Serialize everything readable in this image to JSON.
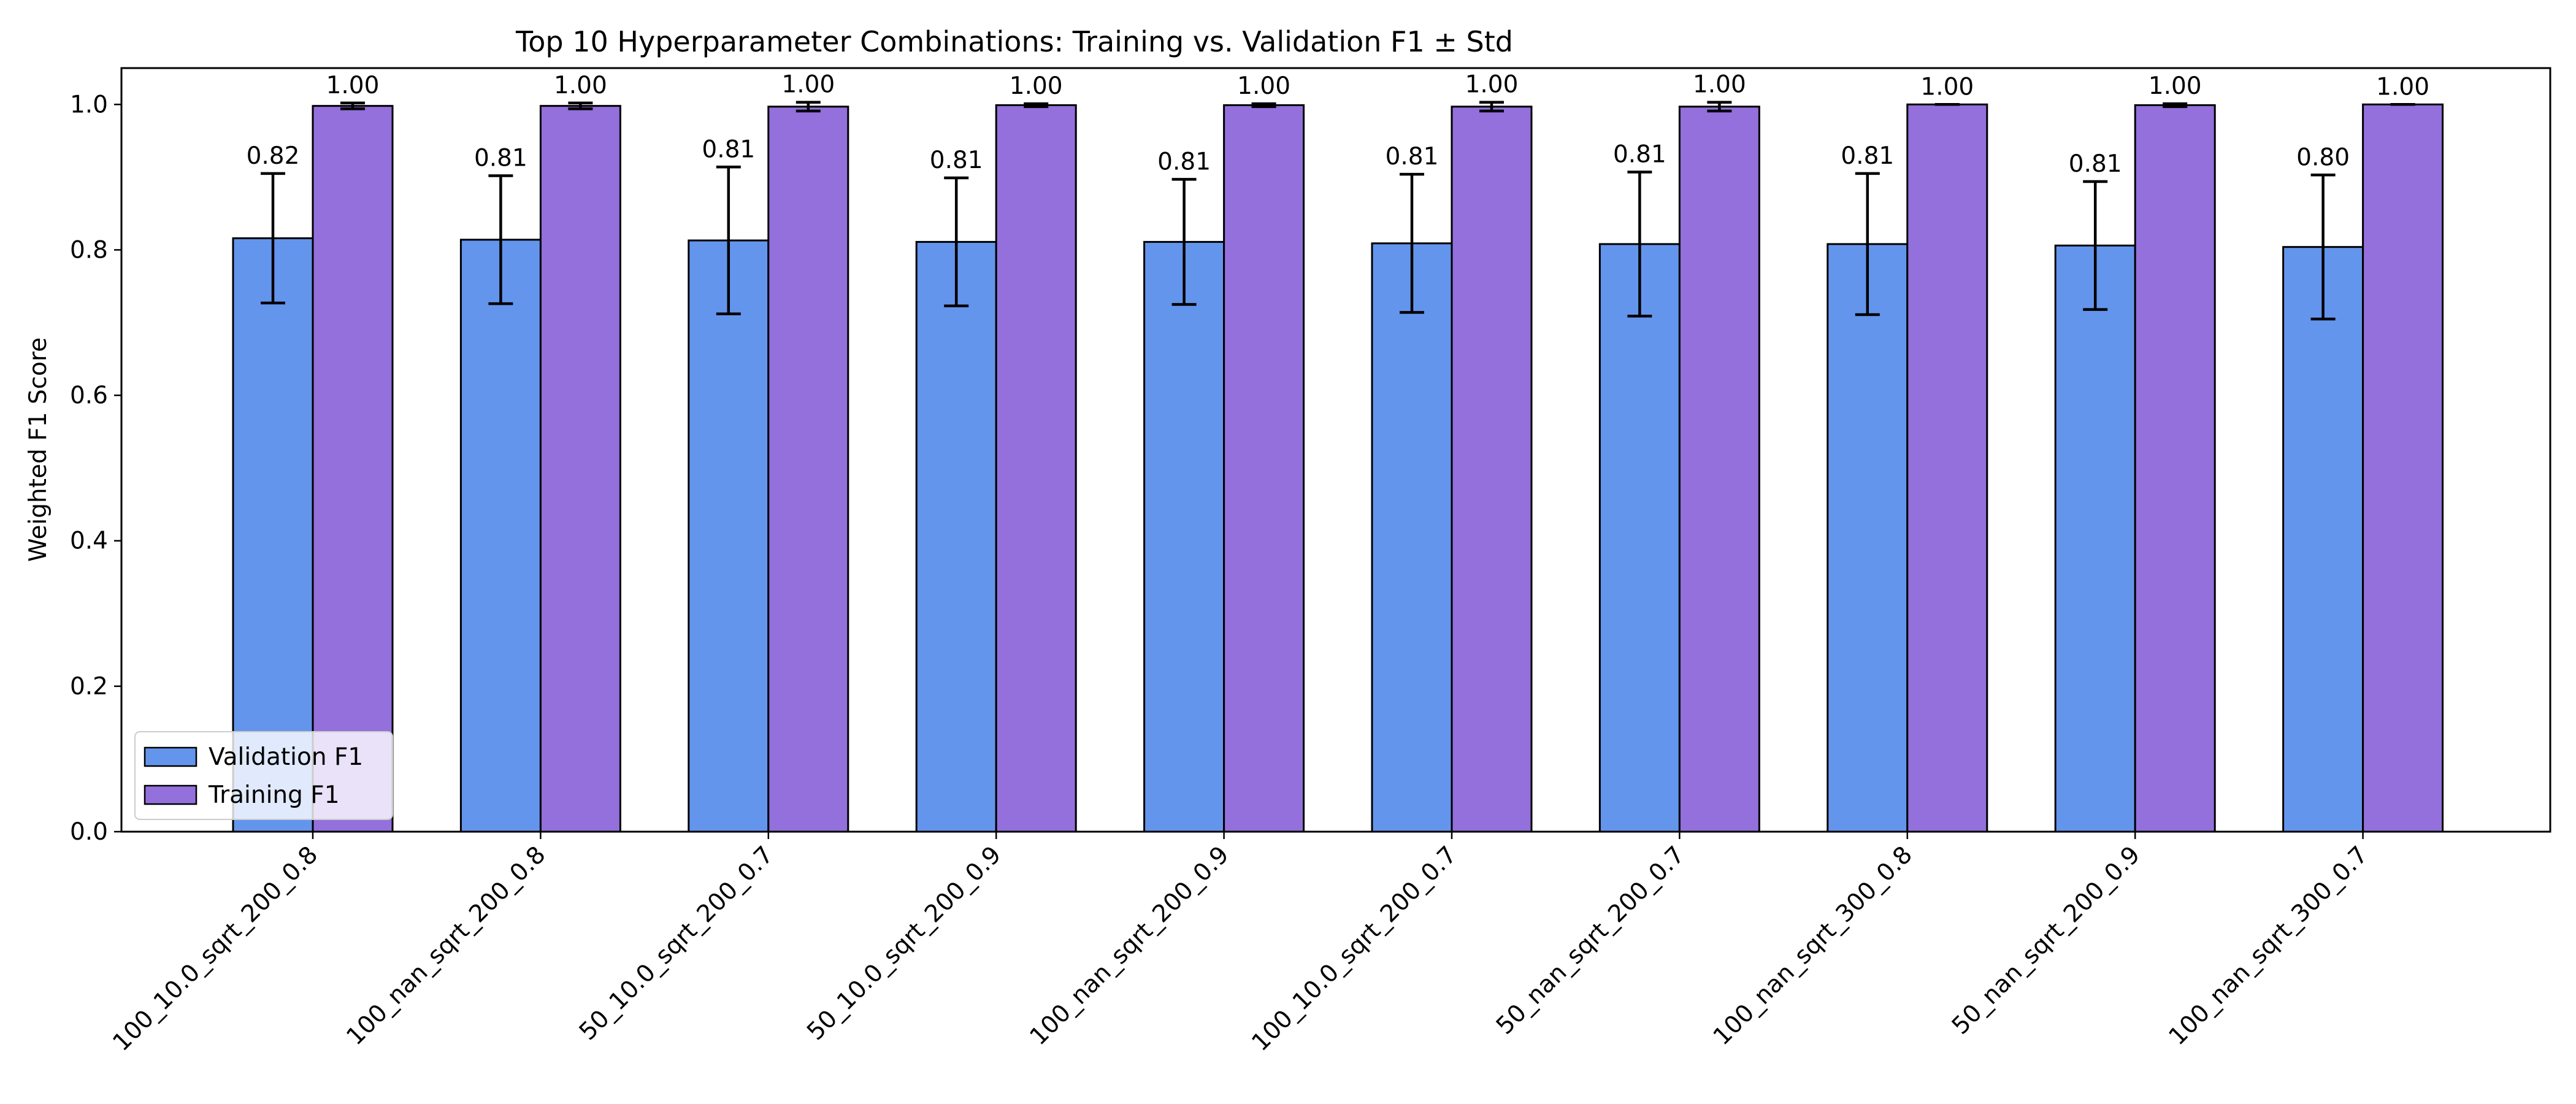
{
  "chart_data": {
    "type": "bar",
    "title": "Top 10 Hyperparameter Combinations: Training vs. Validation F1 ± Std",
    "xlabel": "",
    "ylabel": "Weighted F1 Score",
    "ylim": [
      0,
      1.05
    ],
    "yticks": [
      0.0,
      0.2,
      0.4,
      0.6,
      0.8,
      1.0
    ],
    "ytick_labels": [
      "0.0",
      "0.2",
      "0.4",
      "0.6",
      "0.8",
      "1.0"
    ],
    "grid": false,
    "legend_position": "lower-left",
    "categories": [
      "100_10.0_sqrt_200_0.8",
      "100_nan_sqrt_200_0.8",
      "50_10.0_sqrt_200_0.7",
      "50_10.0_sqrt_200_0.9",
      "100_nan_sqrt_200_0.9",
      "100_10.0_sqrt_200_0.7",
      "50_nan_sqrt_200_0.7",
      "100_nan_sqrt_300_0.8",
      "50_nan_sqrt_200_0.9",
      "100_nan_sqrt_300_0.7"
    ],
    "series": [
      {
        "name": "Validation F1",
        "color": "#6495ED",
        "values": [
          0.816,
          0.814,
          0.813,
          0.811,
          0.811,
          0.809,
          0.808,
          0.808,
          0.806,
          0.804
        ],
        "std": [
          0.089,
          0.088,
          0.101,
          0.088,
          0.086,
          0.095,
          0.099,
          0.097,
          0.088,
          0.099
        ],
        "labels": [
          "0.82",
          "0.81",
          "0.81",
          "0.81",
          "0.81",
          "0.81",
          "0.81",
          "0.81",
          "0.81",
          "0.80"
        ]
      },
      {
        "name": "Training F1",
        "color": "#9370DB",
        "values": [
          0.998,
          0.998,
          0.997,
          0.999,
          0.999,
          0.997,
          0.997,
          1.0,
          0.999,
          1.0
        ],
        "std": [
          0.004,
          0.004,
          0.006,
          0.002,
          0.002,
          0.006,
          0.006,
          0.0,
          0.002,
          0.0
        ],
        "labels": [
          "1.00",
          "1.00",
          "1.00",
          "1.00",
          "1.00",
          "1.00",
          "1.00",
          "1.00",
          "1.00",
          "1.00"
        ]
      }
    ]
  }
}
